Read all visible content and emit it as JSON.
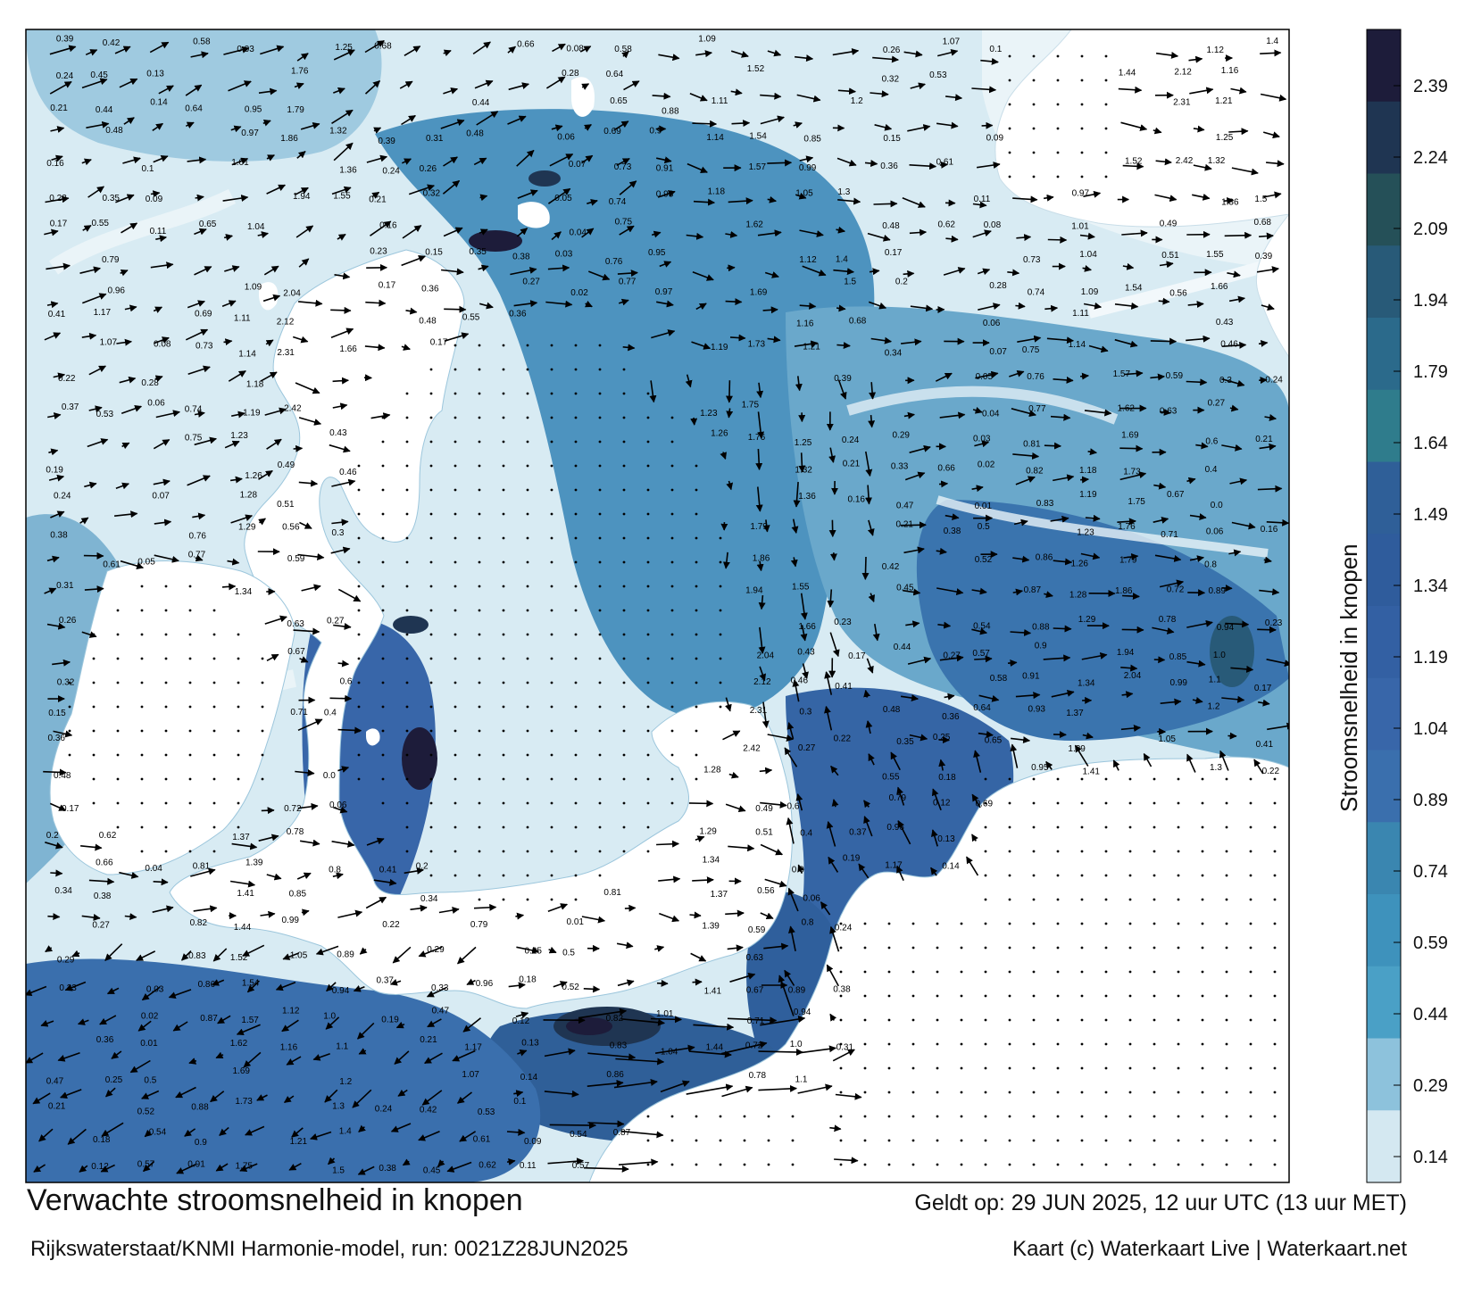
{
  "map": {
    "title": "Verwachte stroomsnelheid in knopen",
    "valid_time": "Geldt op: 29 JUN 2025, 12 uur UTC (13 uur MET)",
    "model_run": "Rijkswaterstaat/KNMI Harmonie-model, run: 0021Z28JUN2025",
    "credit": "Kaart (c) Waterkaart Live | Waterkaart.net"
  },
  "colorbar": {
    "title": "Stroomsnelheid in knopen",
    "ticks": [
      "2.39",
      "2.24",
      "2.09",
      "1.94",
      "1.79",
      "1.64",
      "1.49",
      "1.34",
      "1.19",
      "1.04",
      "0.89",
      "0.74",
      "0.59",
      "0.44",
      "0.29",
      "0.14"
    ],
    "colors": [
      "#1d1c3a",
      "#1f3552",
      "#255058",
      "#285a78",
      "#2b6a8b",
      "#2f7c8c",
      "#2f5f98",
      "#2f5c9c",
      "#3360a3",
      "#3866a9",
      "#3a6fad",
      "#3a86b0",
      "#3e92bc",
      "#4aa0c6",
      "#8dc2dc",
      "#d4e8f1"
    ]
  },
  "map_colors": {
    "land": "#ffffff",
    "sea_light": "#e2eff6",
    "sea_mid": "#86b7d0",
    "sea_deep": "#2f6aa3",
    "sea_fast": "#1d1c3a",
    "arrow": "#000000"
  },
  "speed_labels": [
    "0.39",
    "0.24",
    "0.21",
    "0.16",
    "0.23",
    "0.17",
    "0.41",
    "0.22",
    "0.37",
    "0.19",
    "0.24",
    "0.38",
    "0.31",
    "0.26",
    "0.32",
    "0.15",
    "0.36",
    "0.48",
    "0.17",
    "0.2",
    "0.34",
    "0.29",
    "0.33",
    "0.47",
    "0.21",
    "0.42",
    "0.45",
    "0.44",
    "0.48",
    "0.35",
    "0.55",
    "0.79",
    "0.96",
    "1.17",
    "1.07",
    "0.53",
    "0.61",
    "0.62",
    "0.66",
    "0.38",
    "0.27",
    "0.36",
    "0.25",
    "0.18",
    "0.12",
    "0.13",
    "0.14",
    "0.1",
    "0.09",
    "0.11",
    "0.08",
    "0.28",
    "0.06",
    "0.07",
    "0.05",
    "0.04",
    "0.03",
    "0.02",
    "0.01",
    "0.5",
    "0.52",
    "0.54",
    "0.57",
    "0.58",
    "0.64",
    "0.65",
    "0.69",
    "0.73",
    "0.74",
    "0.75",
    "0.76",
    "0.77",
    "0.81",
    "0.82",
    "0.83",
    "0.86",
    "0.87",
    "0.88",
    "0.9",
    "0.91",
    "0.93",
    "0.95",
    "0.97",
    "1.01",
    "1.04",
    "1.09",
    "1.11",
    "1.14",
    "1.18",
    "1.19",
    "1.23",
    "1.26",
    "1.28",
    "1.29",
    "1.34",
    "1.37",
    "1.39",
    "1.41",
    "1.44",
    "1.52",
    "1.54",
    "1.57",
    "1.62",
    "1.69",
    "1.73",
    "1.75",
    "1.76",
    "1.79",
    "1.86",
    "1.94",
    "2.04",
    "2.12",
    "2.31",
    "2.42",
    "0.49",
    "0.51",
    "0.56",
    "0.59",
    "0.63",
    "0.67",
    "0.71",
    "0.72",
    "0.78",
    "0.85",
    "0.99",
    "1.05",
    "1.12",
    "1.16",
    "1.21",
    "1.25",
    "1.32",
    "1.36",
    "1.55",
    "1.66",
    "0.43",
    "0.46",
    "0.3",
    "0.27",
    "0.6",
    "0.4",
    "0.0",
    "0.06",
    "0.8",
    "0.89",
    "0.94",
    "1.0",
    "1.1",
    "1.2",
    "1.3",
    "1.4",
    "1.5",
    "0.68"
  ]
}
